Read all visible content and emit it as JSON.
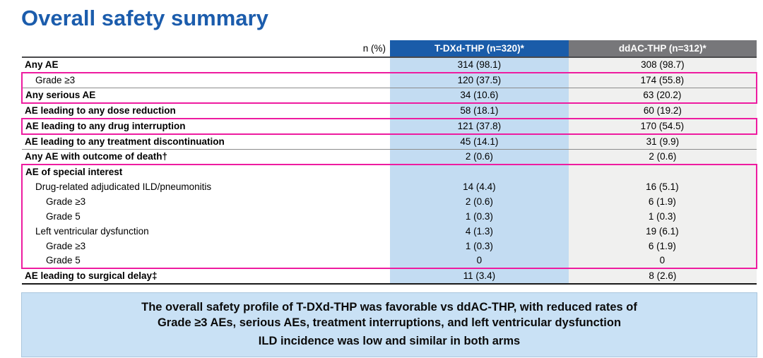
{
  "page": {
    "title": "Overall safety summary"
  },
  "colors": {
    "title_blue": "#1B5CAC",
    "header_blue": "#1A5CA9",
    "header_gray": "#77777A",
    "cell_blue": "#C3DCF2",
    "cell_gray": "#F0F0EF",
    "highlight_pink": "#EE1CA0",
    "summary_bg": "#C9E1F5"
  },
  "table": {
    "unit_label": "n (%)",
    "columns": [
      {
        "label": "T-DXd-THP (n=320)*"
      },
      {
        "label": "ddAC-THP (n=312)*"
      }
    ],
    "rows": [
      {
        "label": "Any AE",
        "indent": 0,
        "sep": true,
        "hl": null,
        "tdxd": "314 (98.1)",
        "ddac": "308 (98.7)"
      },
      {
        "label": "Grade ≥3",
        "indent": 1,
        "sep": true,
        "hl": 1,
        "tdxd": "120 (37.5)",
        "ddac": "174 (55.8)"
      },
      {
        "label": "Any serious AE",
        "indent": 0,
        "sep": true,
        "hl": 1,
        "tdxd": "34 (10.6)",
        "ddac": "63 (20.2)"
      },
      {
        "label": "AE leading to any dose reduction",
        "indent": 0,
        "sep": true,
        "hl": null,
        "tdxd": "58 (18.1)",
        "ddac": "60 (19.2)"
      },
      {
        "label": "AE leading to any drug interruption",
        "indent": 0,
        "sep": true,
        "hl": 2,
        "tdxd": "121 (37.8)",
        "ddac": "170 (54.5)"
      },
      {
        "label": "AE leading to any treatment discontinuation",
        "indent": 0,
        "sep": true,
        "hl": null,
        "tdxd": "45 (14.1)",
        "ddac": "31 (9.9)"
      },
      {
        "label": "Any AE with outcome of death†",
        "indent": 0,
        "sep": true,
        "hl": null,
        "tdxd": "2 (0.6)",
        "ddac": "2 (0.6)"
      },
      {
        "label": "AE of special interest",
        "indent": 0,
        "sep": false,
        "hl": 3,
        "tdxd": "",
        "ddac": ""
      },
      {
        "label": "Drug-related adjudicated ILD/pneumonitis",
        "indent": 1,
        "sep": false,
        "hl": 3,
        "tdxd": "14 (4.4)",
        "ddac": "16 (5.1)"
      },
      {
        "label": "Grade ≥3",
        "indent": 2,
        "sep": false,
        "hl": 3,
        "tdxd": "2 (0.6)",
        "ddac": "6 (1.9)"
      },
      {
        "label": "Grade 5",
        "indent": 2,
        "sep": false,
        "hl": 3,
        "tdxd": "1 (0.3)",
        "ddac": "1 (0.3)"
      },
      {
        "label": "Left ventricular dysfunction",
        "indent": 1,
        "sep": false,
        "hl": 3,
        "tdxd": "4 (1.3)",
        "ddac": "19 (6.1)"
      },
      {
        "label": "Grade ≥3",
        "indent": 2,
        "sep": false,
        "hl": 3,
        "tdxd": "1 (0.3)",
        "ddac": "6 (1.9)"
      },
      {
        "label": "Grade 5",
        "indent": 2,
        "sep": false,
        "hl": 3,
        "tdxd": "0",
        "ddac": "0"
      },
      {
        "label": "AE leading to surgical delay‡",
        "indent": 0,
        "sep": false,
        "hl": null,
        "tdxd": "11 (3.4)",
        "ddac": "8 (2.6)"
      }
    ]
  },
  "summary": {
    "lines": [
      "The overall safety profile of T-DXd-THP was favorable vs ddAC-THP, with reduced rates of",
      "Grade ≥3 AEs, serious AEs, treatment interruptions, and left ventricular dysfunction",
      "ILD incidence was low and similar in both arms"
    ]
  }
}
